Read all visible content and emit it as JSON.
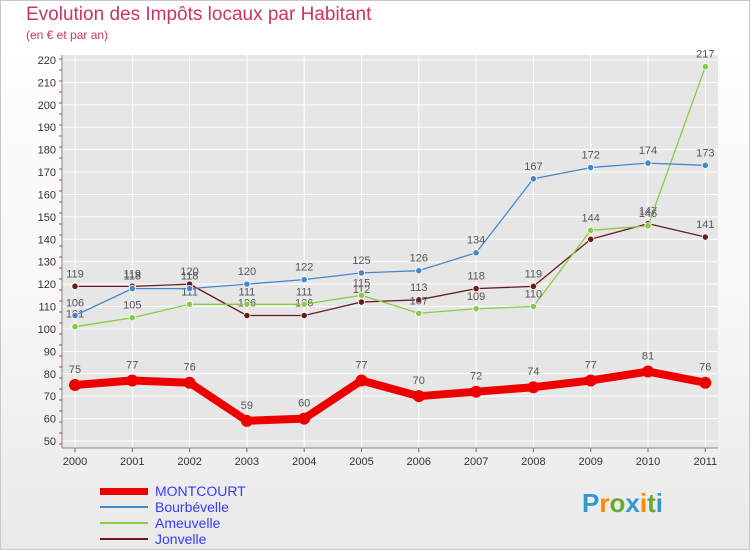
{
  "chart_data": {
    "type": "line",
    "title": "Evolution des Impôts locaux par Habitant",
    "subtitle": "(en € et par an)",
    "xlabel": "",
    "ylabel": "",
    "ylim": [
      50,
      220
    ],
    "yticks": [
      50,
      60,
      70,
      80,
      90,
      100,
      110,
      120,
      130,
      140,
      150,
      160,
      170,
      180,
      190,
      200,
      210,
      220
    ],
    "categories": [
      "2000",
      "2001",
      "2002",
      "2003",
      "2004",
      "2005",
      "2006",
      "2007",
      "2008",
      "2009",
      "2010",
      "2011"
    ],
    "series": [
      {
        "name": "Jonvelle",
        "color": "#6b1b1b",
        "values": [
          119,
          119,
          120,
          106,
          106,
          112,
          113,
          118,
          119,
          140,
          147,
          141
        ],
        "labels": [
          "119",
          "119",
          "120",
          "106",
          "106",
          "112",
          "113",
          "118",
          "119",
          "",
          "147",
          "141"
        ]
      },
      {
        "name": "Ameuvelle",
        "color": "#88cc44",
        "values": [
          101,
          105,
          111,
          111,
          111,
          115,
          107,
          109,
          110,
          144,
          146,
          217
        ],
        "labels": [
          "101",
          "105",
          "111",
          "111",
          "111",
          "115",
          "107",
          "109",
          "110",
          "144",
          "146",
          "217"
        ]
      },
      {
        "name": "Bourbévelle",
        "color": "#4488cc",
        "values": [
          106,
          118,
          118,
          120,
          122,
          125,
          126,
          134,
          167,
          172,
          174,
          173
        ],
        "labels": [
          "106",
          "118",
          "118",
          "120",
          "122",
          "125",
          "126",
          "134",
          "167",
          "172",
          "174",
          "173"
        ]
      },
      {
        "name": "MONTCOURT",
        "color": "#ee0000",
        "values": [
          75,
          77,
          76,
          59,
          60,
          77,
          70,
          72,
          74,
          77,
          81,
          76
        ],
        "labels": [
          "75",
          "77",
          "76",
          "59",
          "60",
          "77",
          "70",
          "72",
          "74",
          "77",
          "81",
          "76"
        ]
      }
    ],
    "legend": [
      "MONTCOURT",
      "Bourbévelle",
      "Ameuvelle",
      "Jonvelle"
    ]
  },
  "logo": {
    "letters": [
      {
        "ch": "P",
        "color": "#3399cc"
      },
      {
        "ch": "r",
        "color": "#ff8800"
      },
      {
        "ch": "o",
        "color": "#66aa33"
      },
      {
        "ch": "x",
        "color": "#3399cc"
      },
      {
        "ch": "i",
        "color": "#ff8800"
      },
      {
        "ch": "t",
        "color": "#66aa33"
      },
      {
        "ch": "i",
        "color": "#3399cc"
      }
    ]
  }
}
